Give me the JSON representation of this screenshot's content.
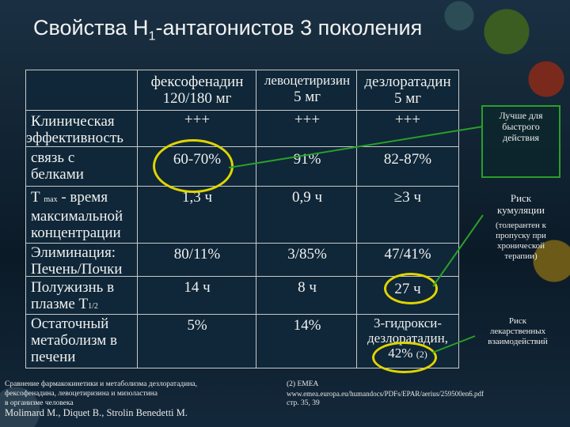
{
  "title": {
    "main": "Свойства H",
    "sub": "1",
    "rest": "-антагонистов 3 поколения"
  },
  "columns": {
    "fexofenadine": {
      "name": "фексофенадин",
      "dose": "120/180 мг"
    },
    "levocetirizine": {
      "name": "левоцетиризин",
      "dose": "5 мг"
    },
    "desloratadine": {
      "name": "дезлоратадин",
      "dose": "5 мг"
    }
  },
  "rows": {
    "efficacy": {
      "label1": "Клиническая",
      "label2": "эффективность",
      "v1": "+++",
      "v2": "+++",
      "v3": "+++"
    },
    "protein": {
      "label1": "связь с",
      "label2": "белками",
      "v1": "60-70%",
      "v2": "91%",
      "v3": "82-87%"
    },
    "tmax": {
      "label1a": "Т",
      "label1b": "max",
      "label1c": " - время",
      "label2": "максимальной",
      "label3": "концентрации",
      "v1": "1,3 ч",
      "v2": "0,9 ч",
      "v3": "≥3 ч"
    },
    "elimination": {
      "label1": "Элиминация:",
      "label2": "Печень/Почки",
      "v1": "80/11%",
      "v2": "3/85%",
      "v3": "47/41%"
    },
    "halflife": {
      "label1": "Полужизнь в",
      "label2a": "плазме  Т",
      "label2b": "1/2",
      "v1": "14 ч",
      "v2": "8 ч",
      "v3": "27 ч"
    },
    "metabolism": {
      "label1": "Остаточный",
      "label2": "метаболизм в",
      "label3": "печени",
      "v1": "5%",
      "v2": "14%",
      "v3a": "3-гидрокси-",
      "v3b": "дезлоратадин,",
      "v3c": "42%",
      "v3d": "(2)"
    }
  },
  "callouts": {
    "fast": [
      "Лучше для",
      "быстрого",
      "действия"
    ],
    "cumulation": [
      "Риск",
      "кумуляции"
    ],
    "cumulation_note": [
      "(толерантен к",
      "пропуску при",
      "хронической",
      "терапии)"
    ],
    "interactions": [
      "Риск",
      "лекарственных",
      "взаимодействий"
    ]
  },
  "footer": {
    "left": [
      "Сравнение фармакокинетики и метаболизма дезлоратадина,",
      "фексофенадина, левоцетиризина и мизоластина",
      "в организме человека"
    ],
    "authors": "Molimard M., Diquet B., Strolin Benedetti M.",
    "right": [
      "(2) EMEA",
      "www.emea.europa.eu/humandocs/PDFs/EPAR/aerius/259500en6.pdf",
      "стр. 35, 39"
    ]
  },
  "colors": {
    "highlight": "#e0d400",
    "callout_border": "#2a9e2a"
  }
}
